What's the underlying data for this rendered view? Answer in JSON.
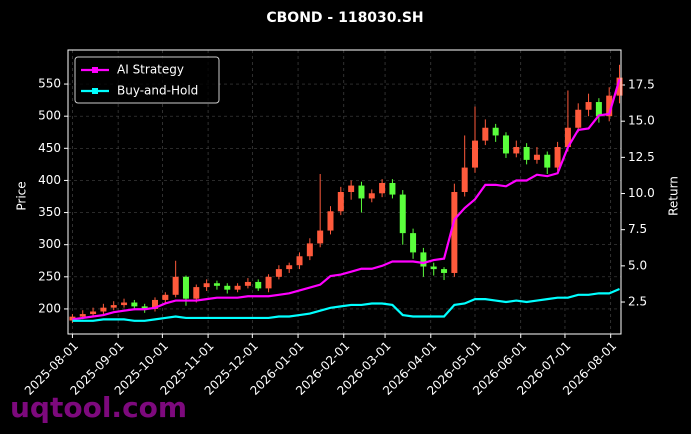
{
  "chart_data": {
    "type": "candlestick",
    "title": "CBOND - 118030.SH",
    "x": [
      "2025-08-01",
      "2025-08-08",
      "2025-08-15",
      "2025-08-22",
      "2025-08-29",
      "2025-09-05",
      "2025-09-12",
      "2025-09-19",
      "2025-09-26",
      "2025-10-03",
      "2025-10-10",
      "2025-10-17",
      "2025-10-24",
      "2025-10-31",
      "2025-11-07",
      "2025-11-14",
      "2025-11-21",
      "2025-11-28",
      "2025-12-05",
      "2025-12-12",
      "2025-12-19",
      "2025-12-26",
      "2026-01-02",
      "2026-01-09",
      "2026-01-16",
      "2026-01-23",
      "2026-01-30",
      "2026-02-06",
      "2026-02-13",
      "2026-02-20",
      "2026-02-27",
      "2026-03-06",
      "2026-03-13",
      "2026-03-20",
      "2026-03-27",
      "2026-04-03",
      "2026-04-10",
      "2026-04-17",
      "2026-04-24",
      "2026-05-01",
      "2026-05-08",
      "2026-05-15",
      "2026-05-22",
      "2026-05-29",
      "2026-06-05",
      "2026-06-12",
      "2026-06-19",
      "2026-06-26",
      "2026-07-03",
      "2026-07-10",
      "2026-07-17",
      "2026-07-24",
      "2026-07-31",
      "2026-08-07"
    ],
    "open": [
      182,
      188,
      192,
      196,
      202,
      206,
      210,
      204,
      200,
      214,
      222,
      250,
      216,
      234,
      240,
      236,
      230,
      236,
      242,
      232,
      250,
      262,
      268,
      282,
      302,
      322,
      352,
      382,
      392,
      372,
      380,
      396,
      378,
      318,
      288,
      266,
      262,
      256,
      382,
      420,
      462,
      482,
      470,
      442,
      452,
      432,
      440,
      420,
      452,
      482,
      510,
      522,
      500,
      532
    ],
    "high": [
      192,
      198,
      202,
      208,
      212,
      216,
      214,
      208,
      218,
      226,
      275,
      252,
      238,
      246,
      244,
      240,
      240,
      248,
      246,
      254,
      268,
      272,
      288,
      310,
      410,
      360,
      390,
      400,
      398,
      386,
      402,
      402,
      385,
      325,
      295,
      272,
      265,
      395,
      470,
      515,
      495,
      488,
      475,
      462,
      458,
      452,
      445,
      460,
      540,
      520,
      535,
      528,
      545,
      580
    ],
    "low": [
      178,
      184,
      188,
      192,
      198,
      202,
      198,
      194,
      196,
      208,
      218,
      205,
      210,
      228,
      230,
      224,
      226,
      232,
      228,
      226,
      246,
      256,
      262,
      276,
      296,
      316,
      346,
      370,
      350,
      366,
      374,
      372,
      300,
      278,
      250,
      252,
      245,
      250,
      375,
      412,
      455,
      460,
      435,
      436,
      425,
      426,
      410,
      415,
      445,
      475,
      500,
      490,
      492,
      520
    ],
    "close": [
      188,
      192,
      196,
      202,
      206,
      210,
      204,
      200,
      214,
      222,
      250,
      216,
      234,
      240,
      236,
      230,
      236,
      242,
      232,
      250,
      262,
      268,
      282,
      302,
      322,
      352,
      382,
      392,
      372,
      380,
      396,
      378,
      318,
      288,
      266,
      262,
      256,
      382,
      420,
      462,
      482,
      470,
      442,
      452,
      432,
      440,
      420,
      452,
      482,
      510,
      522,
      500,
      532,
      560
    ],
    "up_color": "#ff5a3c",
    "down_color": "#5aff3c",
    "series": [
      {
        "name": "AI Strategy",
        "color": "#ff00ff",
        "axis": "y2",
        "values": [
          1.3,
          1.4,
          1.5,
          1.6,
          1.8,
          1.9,
          2.0,
          2.0,
          2.1,
          2.4,
          2.6,
          2.6,
          2.6,
          2.7,
          2.8,
          2.8,
          2.8,
          2.9,
          2.9,
          2.9,
          3.0,
          3.1,
          3.3,
          3.5,
          3.7,
          4.3,
          4.4,
          4.6,
          4.8,
          4.8,
          5.0,
          5.3,
          5.3,
          5.3,
          5.2,
          5.4,
          5.5,
          8.2,
          9.0,
          9.6,
          10.6,
          10.6,
          10.5,
          10.9,
          10.9,
          11.3,
          11.2,
          11.4,
          13.2,
          14.4,
          14.5,
          15.4,
          15.5,
          17.9
        ]
      },
      {
        "name": "Buy-and-Hold",
        "color": "#00ffff",
        "axis": "y2",
        "values": [
          1.2,
          1.2,
          1.2,
          1.3,
          1.3,
          1.3,
          1.2,
          1.2,
          1.3,
          1.4,
          1.5,
          1.4,
          1.4,
          1.4,
          1.4,
          1.4,
          1.4,
          1.4,
          1.4,
          1.4,
          1.5,
          1.5,
          1.6,
          1.7,
          1.9,
          2.1,
          2.2,
          2.3,
          2.3,
          2.4,
          2.4,
          2.3,
          1.6,
          1.5,
          1.5,
          1.5,
          1.5,
          2.3,
          2.4,
          2.7,
          2.7,
          2.6,
          2.5,
          2.6,
          2.5,
          2.6,
          2.7,
          2.8,
          2.8,
          3.0,
          3.0,
          3.1,
          3.1,
          3.4
        ]
      }
    ],
    "ylabel": "Price",
    "y2label": "Return",
    "xlim": [
      "2025-07-29",
      "2026-08-08"
    ],
    "xticks": [
      "2025-08-01",
      "2025-09-01",
      "2025-10-01",
      "2025-11-01",
      "2025-12-01",
      "2026-01-01",
      "2026-02-01",
      "2026-03-01",
      "2026-04-01",
      "2026-05-01",
      "2026-06-01",
      "2026-07-01",
      "2026-08-01"
    ],
    "ylim": [
      161,
      603
    ],
    "yticks": [
      200,
      250,
      300,
      350,
      400,
      450,
      500,
      550
    ],
    "y2lim": [
      0.29,
      19.92
    ],
    "y2ticks": [
      2.5,
      {
        "value": 5,
        "label": "5.0"
      },
      7.5,
      {
        "value": 10,
        "label": "10.0"
      },
      12.5,
      {
        "value": 15,
        "label": "15.0"
      },
      17.5
    ],
    "grid": true,
    "legend": "upper left"
  },
  "watermark": "uqtool.com"
}
